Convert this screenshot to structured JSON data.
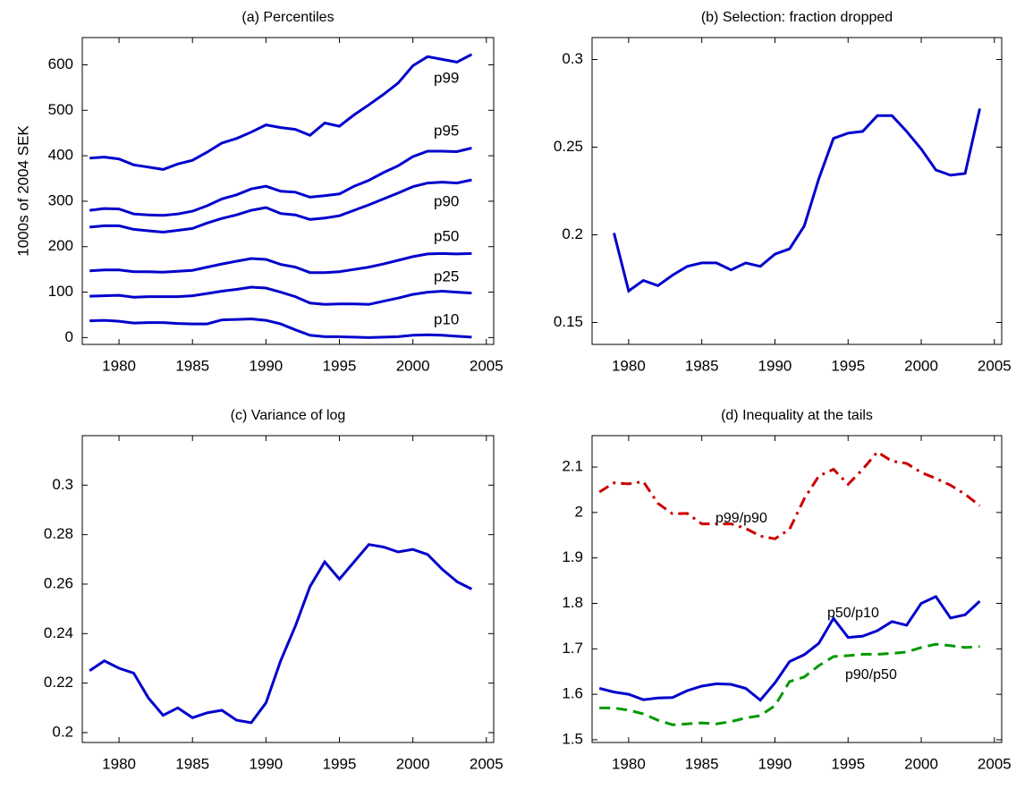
{
  "chart_data": [
    {
      "type": "line",
      "title": "(a) Percentiles",
      "ylabel": "1000s of 2004 SEK",
      "x": [
        1978,
        1979,
        1980,
        1981,
        1982,
        1983,
        1984,
        1985,
        1986,
        1987,
        1988,
        1989,
        1990,
        1991,
        1992,
        1993,
        1994,
        1995,
        1996,
        1997,
        1998,
        1999,
        2000,
        2001,
        2002,
        2003,
        2004
      ],
      "series": [
        {
          "name": "p99",
          "color": "#0000cc",
          "linestyle": "solid",
          "values": [
            395,
            397,
            393,
            380,
            375,
            370,
            382,
            390,
            408,
            428,
            438,
            452,
            468,
            462,
            458,
            445,
            472,
            465,
            490,
            512,
            535,
            560,
            598,
            618,
            612,
            606,
            623
          ]
        },
        {
          "name": "p95",
          "color": "#0000cc",
          "linestyle": "solid",
          "values": [
            280,
            284,
            283,
            272,
            270,
            269,
            272,
            278,
            290,
            305,
            314,
            327,
            333,
            322,
            320,
            309,
            312,
            316,
            333,
            346,
            363,
            378,
            398,
            410,
            410,
            409,
            417
          ]
        },
        {
          "name": "p90",
          "color": "#0000cc",
          "linestyle": "solid",
          "values": [
            243,
            246,
            246,
            238,
            235,
            232,
            236,
            240,
            252,
            262,
            270,
            280,
            286,
            273,
            270,
            260,
            263,
            268,
            280,
            292,
            305,
            318,
            332,
            340,
            342,
            340,
            347
          ]
        },
        {
          "name": "p50",
          "color": "#0000cc",
          "linestyle": "solid",
          "values": [
            147,
            149,
            149,
            145,
            145,
            144,
            146,
            148,
            155,
            162,
            168,
            174,
            172,
            161,
            155,
            143,
            143,
            145,
            150,
            155,
            162,
            170,
            178,
            184,
            185,
            184,
            185
          ]
        },
        {
          "name": "p25",
          "color": "#0000cc",
          "linestyle": "solid",
          "values": [
            91,
            92,
            93,
            89,
            90,
            90,
            90,
            92,
            97,
            102,
            106,
            111,
            109,
            100,
            90,
            76,
            73,
            74,
            74,
            73,
            80,
            87,
            95,
            100,
            102,
            100,
            98
          ]
        },
        {
          "name": "p10",
          "color": "#0000cc",
          "linestyle": "solid",
          "values": [
            37,
            38,
            36,
            32,
            33,
            33,
            31,
            30,
            30,
            39,
            40,
            41,
            38,
            30,
            17,
            5,
            2,
            2,
            1,
            0,
            1,
            2,
            5,
            6,
            5,
            3,
            1
          ]
        }
      ],
      "xlim": [
        1977.5,
        2005.5
      ],
      "xticks": [
        1980,
        1985,
        1990,
        1995,
        2000,
        2005
      ],
      "ylim": [
        -15,
        660
      ],
      "yticks": [
        0,
        100,
        200,
        300,
        400,
        500,
        600
      ]
    },
    {
      "type": "line",
      "title": "(b) Selection: fraction dropped",
      "x": [
        1979,
        1980,
        1981,
        1982,
        1983,
        1984,
        1985,
        1986,
        1987,
        1988,
        1989,
        1990,
        1991,
        1992,
        1993,
        1994,
        1995,
        1996,
        1997,
        1998,
        1999,
        2000,
        2001,
        2002,
        2003,
        2004
      ],
      "series": [
        {
          "color": "#0000cc",
          "linestyle": "solid",
          "values": [
            0.201,
            0.168,
            0.174,
            0.171,
            0.177,
            0.182,
            0.184,
            0.184,
            0.18,
            0.184,
            0.182,
            0.189,
            0.192,
            0.205,
            0.232,
            0.255,
            0.258,
            0.259,
            0.268,
            0.268,
            0.259,
            0.249,
            0.237,
            0.234,
            0.235,
            0.272
          ]
        }
      ],
      "xlim": [
        1977.5,
        2005.5
      ],
      "xticks": [
        1980,
        1985,
        1990,
        1995,
        2000,
        2005
      ],
      "ylim": [
        0.1375,
        0.3125
      ],
      "yticks": [
        0.15,
        0.2,
        0.25,
        0.3
      ]
    },
    {
      "type": "line",
      "title": "(c) Variance of log",
      "x": [
        1978,
        1979,
        1980,
        1981,
        1982,
        1983,
        1984,
        1985,
        1986,
        1987,
        1988,
        1989,
        1990,
        1991,
        1992,
        1993,
        1994,
        1995,
        1996,
        1997,
        1998,
        1999,
        2000,
        2001,
        2002,
        2003,
        2004
      ],
      "series": [
        {
          "color": "#0000cc",
          "linestyle": "solid",
          "values": [
            0.225,
            0.229,
            0.226,
            0.224,
            0.214,
            0.207,
            0.21,
            0.206,
            0.208,
            0.209,
            0.205,
            0.204,
            0.212,
            0.229,
            0.243,
            0.259,
            0.269,
            0.262,
            0.269,
            0.276,
            0.275,
            0.273,
            0.274,
            0.272,
            0.266,
            0.261,
            0.258
          ]
        }
      ],
      "xlim": [
        1977.5,
        2005.5
      ],
      "xticks": [
        1980,
        1985,
        1990,
        1995,
        2000,
        2005
      ],
      "ylim": [
        0.196,
        0.32
      ],
      "yticks": [
        0.2,
        0.22,
        0.24,
        0.26,
        0.28,
        0.3
      ]
    },
    {
      "type": "line",
      "title": "(d) Inequality at the tails",
      "x": [
        1978,
        1979,
        1980,
        1981,
        1982,
        1983,
        1984,
        1985,
        1986,
        1987,
        1988,
        1989,
        1990,
        1991,
        1992,
        1993,
        1994,
        1995,
        1996,
        1997,
        1998,
        1999,
        2000,
        2001,
        2002,
        2003,
        2004
      ],
      "series": [
        {
          "name": "p99/p90",
          "color": "#cc0000",
          "linestyle": "dashdot",
          "values": [
            2.045,
            2.065,
            2.063,
            2.068,
            2.02,
            1.997,
            1.998,
            1.975,
            1.975,
            1.975,
            1.965,
            1.948,
            1.942,
            1.963,
            2.03,
            2.08,
            2.095,
            2.062,
            2.095,
            2.133,
            2.113,
            2.108,
            2.088,
            2.075,
            2.06,
            2.04,
            2.015
          ]
        },
        {
          "name": "p50/p10",
          "color": "#0000cc",
          "linestyle": "solid",
          "values": [
            1.613,
            1.605,
            1.6,
            1.588,
            1.592,
            1.593,
            1.608,
            1.618,
            1.623,
            1.622,
            1.613,
            1.587,
            1.625,
            1.672,
            1.687,
            1.712,
            1.767,
            1.725,
            1.728,
            1.74,
            1.76,
            1.752,
            1.8,
            1.815,
            1.768,
            1.775,
            1.805
          ]
        },
        {
          "name": "p90/p50",
          "color": "#009900",
          "linestyle": "dashed",
          "values": [
            1.57,
            1.57,
            1.565,
            1.557,
            1.543,
            1.533,
            1.535,
            1.537,
            1.535,
            1.54,
            1.548,
            1.553,
            1.575,
            1.628,
            1.638,
            1.663,
            1.683,
            1.685,
            1.688,
            1.688,
            1.69,
            1.693,
            1.703,
            1.71,
            1.707,
            1.703,
            1.705
          ]
        }
      ],
      "xlim": [
        1977.5,
        2005.5
      ],
      "xticks": [
        1980,
        1985,
        1990,
        1995,
        2000,
        2005
      ],
      "ylim": [
        1.494,
        2.169
      ],
      "yticks": [
        1.5,
        1.6,
        1.7,
        1.8,
        1.9,
        2,
        2.1
      ]
    }
  ]
}
